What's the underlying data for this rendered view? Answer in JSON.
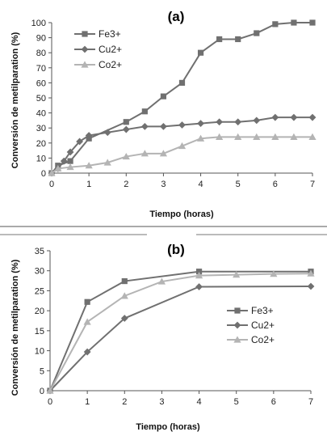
{
  "chart_data": [
    {
      "type": "line",
      "title": "(a)",
      "xlabel": "Tiempo (horas)",
      "ylabel": "Conversión de metilparation (%)",
      "xlim": [
        0,
        7
      ],
      "ylim": [
        0,
        100
      ],
      "xticks": [
        "0",
        "1",
        "2",
        "3",
        "4",
        "5",
        "6",
        "7"
      ],
      "yticks": [
        "0",
        "10",
        "20",
        "30",
        "40",
        "50",
        "60",
        "70",
        "80",
        "90",
        "100"
      ],
      "grid": false,
      "legend_position": "top-left",
      "series": [
        {
          "name": "Fe3+",
          "marker": "square",
          "color": "#707070",
          "x": [
            0,
            0.17,
            0.5,
            1,
            2,
            2.5,
            3,
            3.5,
            4,
            4.5,
            5,
            5.5,
            6,
            6.5,
            7
          ],
          "y": [
            0,
            5,
            8,
            23,
            34,
            41,
            51,
            60,
            80,
            89,
            89,
            93,
            99,
            100,
            100
          ]
        },
        {
          "name": "Cu2+",
          "marker": "diamond",
          "color": "#707070",
          "x": [
            0,
            0.17,
            0.33,
            0.5,
            0.75,
            1,
            1.5,
            2,
            2.5,
            3,
            3.5,
            4,
            4.5,
            5,
            5.5,
            6,
            6.5,
            7
          ],
          "y": [
            0,
            3,
            8,
            14,
            21,
            25,
            27,
            29,
            31,
            31,
            32,
            33,
            34,
            34,
            35,
            37,
            37,
            37
          ]
        },
        {
          "name": "Co2+",
          "marker": "triangle",
          "color": "#b4b4b4",
          "x": [
            0,
            0.17,
            0.5,
            1,
            1.5,
            2,
            2.5,
            3,
            3.5,
            4,
            4.5,
            5,
            5.5,
            6,
            6.5,
            7
          ],
          "y": [
            0,
            3,
            4,
            5,
            7,
            11,
            13,
            13,
            18,
            23,
            24,
            24,
            24,
            24,
            24,
            24
          ]
        }
      ]
    },
    {
      "type": "line",
      "title": "(b)",
      "xlabel": "Tiempo (horas)",
      "ylabel": "Conversión de metilparation (%)",
      "xlim": [
        0,
        7
      ],
      "ylim": [
        0,
        35
      ],
      "xticks": [
        "0",
        "1",
        "2",
        "3",
        "4",
        "5",
        "6",
        "7"
      ],
      "yticks": [
        "0",
        "5",
        "10",
        "15",
        "20",
        "25",
        "30",
        "35"
      ],
      "grid": false,
      "legend_position": "right",
      "series": [
        {
          "name": "Fe3+",
          "marker": "square",
          "color": "#707070",
          "x": [
            0,
            1,
            2,
            4,
            7
          ],
          "y": [
            0,
            22.2,
            27.4,
            29.8,
            29.8
          ]
        },
        {
          "name": "Cu2+",
          "marker": "diamond",
          "color": "#707070",
          "x": [
            0,
            1,
            2,
            4,
            7
          ],
          "y": [
            0,
            9.7,
            18.1,
            26.0,
            26.1
          ]
        },
        {
          "name": "Co2+",
          "marker": "triangle",
          "color": "#b4b4b4",
          "x": [
            0,
            1,
            2,
            3,
            4,
            5,
            6,
            7
          ],
          "y": [
            0,
            17.2,
            23.7,
            27.3,
            28.8,
            29.0,
            29.2,
            29.3
          ]
        }
      ]
    }
  ]
}
